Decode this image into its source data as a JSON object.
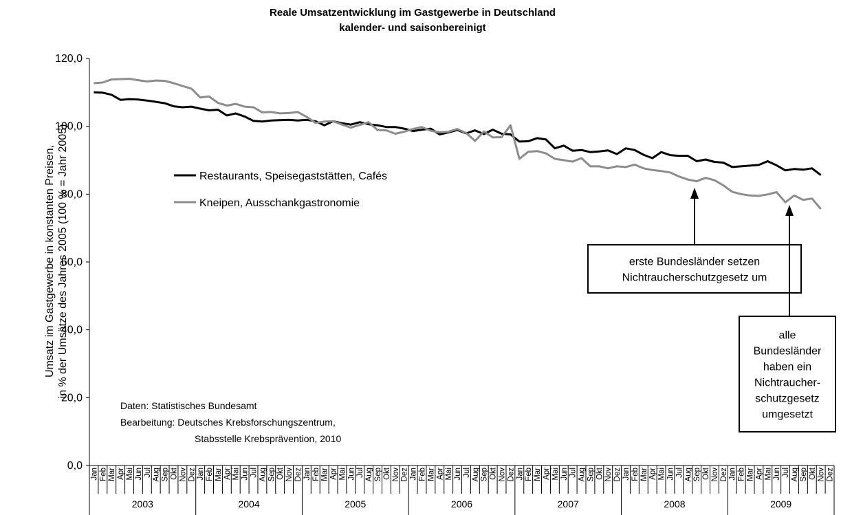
{
  "chart_data": {
    "type": "line",
    "title": "Reale Umsatzentwicklung im Gastgewerbe in Deutschland",
    "subtitle": "kalender- und saisonbereinigt",
    "ylabel": [
      "Umsatz im Gastgewerbe in konstanten Preisen,",
      "in % der Umsätze des Jahres 2005 (100 % = Jahr 2005)"
    ],
    "categories": [
      "Jan",
      "Feb",
      "Mar",
      "Apr",
      "Mai",
      "Jun",
      "Jul",
      "Aug",
      "Sep",
      "Okt",
      "Nov",
      "Dez",
      "Jan",
      "Feb",
      "Mar",
      "Apr",
      "Mai",
      "Jun",
      "Jul",
      "Aug",
      "Sep",
      "Okt",
      "Nov",
      "Dez",
      "Jan",
      "Feb",
      "Mar",
      "Apr",
      "Mai",
      "Jun",
      "Jul",
      "Aug",
      "Sep",
      "Okt",
      "Nov",
      "Dez",
      "Jan",
      "Feb",
      "Mar",
      "Apr",
      "Mai",
      "Jun",
      "Jul",
      "Aug",
      "Sep",
      "Okt",
      "Nov",
      "Dez",
      "Jan",
      "Feb",
      "Mar",
      "Apr",
      "Mai",
      "Jun",
      "Jul",
      "Aug",
      "Sep",
      "Okt",
      "Nov",
      "Dez",
      "Jan",
      "Feb",
      "Mar",
      "Apr",
      "Mai",
      "Jun",
      "Jul",
      "Aug",
      "Sep",
      "Okt",
      "Nov",
      "Dez",
      "Jan",
      "Feb",
      "Mar",
      "Apr",
      "Mai",
      "Jun",
      "Jul",
      "Aug",
      "Sep",
      "Okt",
      "Nov",
      "Dez"
    ],
    "years": [
      "2003",
      "2004",
      "2005",
      "2006",
      "2007",
      "2008",
      "2009"
    ],
    "series": [
      {
        "name": "Restaurants, Speisegaststätten, Cafés",
        "color": "#000000",
        "width": 3,
        "values": [
          110.0,
          109.9,
          109.3,
          107.8,
          108.0,
          107.9,
          107.6,
          107.2,
          106.8,
          105.9,
          105.6,
          105.8,
          105.2,
          104.7,
          104.9,
          103.2,
          103.8,
          102.9,
          101.6,
          101.4,
          101.7,
          101.8,
          101.9,
          101.7,
          101.9,
          101.5,
          100.3,
          101.5,
          100.9,
          100.5,
          101.2,
          100.6,
          100.3,
          99.8,
          99.8,
          99.3,
          98.6,
          99.0,
          99.3,
          97.6,
          98.2,
          98.9,
          97.9,
          98.8,
          97.7,
          99.0,
          97.8,
          97.6,
          95.5,
          95.6,
          96.5,
          96.1,
          93.5,
          94.3,
          92.8,
          93.0,
          92.4,
          92.6,
          92.9,
          91.8,
          93.5,
          93.0,
          91.6,
          90.6,
          92.4,
          91.5,
          91.3,
          91.3,
          89.7,
          90.2,
          89.5,
          89.3,
          88.0,
          88.2,
          88.4,
          88.6,
          89.7,
          88.5,
          87.0,
          87.4,
          87.2,
          87.6,
          85.6,
          null
        ]
      },
      {
        "name": "Kneipen, Ausschankgastronomie",
        "color": "#8c8c8c",
        "width": 3,
        "values": [
          112.7,
          112.9,
          113.8,
          113.9,
          114.0,
          113.6,
          113.2,
          113.5,
          113.4,
          112.7,
          111.9,
          111.1,
          108.5,
          108.8,
          106.9,
          106.1,
          106.6,
          105.8,
          105.6,
          104.1,
          104.2,
          103.8,
          103.9,
          104.2,
          102.8,
          101.0,
          101.4,
          101.5,
          100.5,
          99.6,
          100.4,
          101.2,
          98.9,
          98.8,
          97.8,
          98.4,
          99.2,
          99.8,
          98.7,
          98.2,
          98.4,
          99.2,
          98.0,
          95.7,
          98.5,
          96.7,
          96.8,
          100.3,
          90.4,
          92.5,
          92.7,
          92.0,
          90.4,
          90.0,
          89.6,
          90.6,
          88.2,
          88.2,
          87.6,
          88.2,
          88.0,
          88.7,
          87.6,
          87.1,
          86.8,
          86.4,
          85.2,
          84.3,
          83.8,
          84.8,
          84.1,
          82.6,
          80.7,
          80.0,
          79.6,
          79.5,
          79.9,
          80.6,
          77.6,
          79.6,
          78.3,
          78.7,
          75.6,
          null
        ]
      }
    ],
    "ylim": [
      0,
      120
    ],
    "yticks": [
      {
        "value": 0,
        "label": "0,0"
      },
      {
        "value": 20,
        "label": "20,0"
      },
      {
        "value": 40,
        "label": "40,0"
      },
      {
        "value": 60,
        "label": "60,0"
      },
      {
        "value": 80,
        "label": "80,0"
      },
      {
        "value": 100,
        "label": "100,0"
      },
      {
        "value": 120,
        "label": "120,0"
      }
    ],
    "grid": false,
    "source": [
      "Daten: Statistisches Bundesamt",
      "Bearbeitung: Deutsches Krebsforschungszentrum,",
      "Stabsstelle Krebsprävention, 2010"
    ],
    "annotations": [
      {
        "lines": [
          "erste Bundesländer setzen",
          "Nichtraucherschutzgesetz um"
        ]
      },
      {
        "lines": [
          "alle",
          "Bundesländer",
          "haben ein",
          "Nichtraucher-",
          "schutzgesetz",
          "umgesetzt"
        ]
      }
    ]
  }
}
